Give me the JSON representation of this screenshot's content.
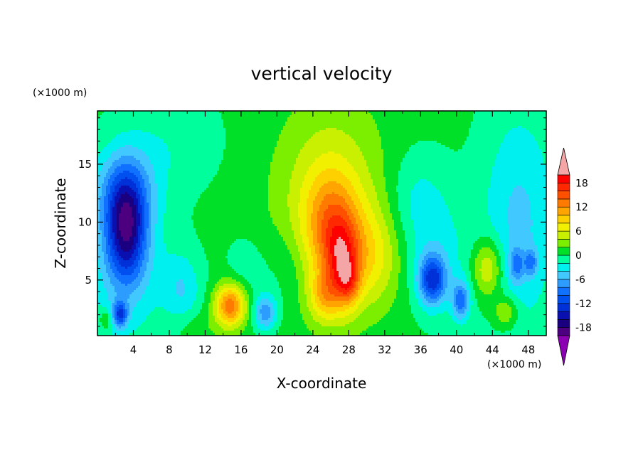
{
  "chart_data": {
    "type": "heatmap",
    "title": "vertical velocity",
    "xlabel": "X-coordinate",
    "ylabel": "Z-coordinate",
    "x_unit": "(×1000 m)",
    "y_unit": "(×1000 m)",
    "xlim": [
      0,
      50
    ],
    "ylim": [
      0.2,
      19.6
    ],
    "x_ticks": [
      4,
      8,
      12,
      16,
      20,
      24,
      28,
      32,
      36,
      40,
      44,
      48
    ],
    "y_ticks": [
      5,
      10,
      15
    ],
    "colorbar": {
      "levels": [
        -20,
        -18,
        -16,
        -14,
        -12,
        -10,
        -8,
        -6,
        -4,
        -2,
        0,
        2,
        4,
        6,
        8,
        10,
        12,
        14,
        16,
        18,
        20
      ],
      "labels": [
        -18,
        -12,
        -6,
        0,
        6,
        12,
        18
      ],
      "colors": [
        "#4c0080",
        "#1a0080",
        "#0a10b0",
        "#0030d8",
        "#0050f0",
        "#1070ff",
        "#2c9cff",
        "#40c8ff",
        "#00f0f0",
        "#00ff9c",
        "#00e028",
        "#7cee00",
        "#c8f000",
        "#f0f000",
        "#ffd000",
        "#ffa400",
        "#ff7a00",
        "#ff5000",
        "#ff2800",
        "#ff0000"
      ],
      "over_color": "#f4a6a6",
      "under_color": "#8c00b4"
    },
    "background_value": 0.5,
    "features": [
      {
        "x": 3.2,
        "z": 9.5,
        "sx": 1.6,
        "sz": 3.2,
        "v": -15
      },
      {
        "x": 3.0,
        "z": 13.0,
        "sx": 2.6,
        "sz": 2.5,
        "v": -5
      },
      {
        "x": 3.0,
        "z": 6.0,
        "sx": 3.5,
        "sz": 5.0,
        "v": -4
      },
      {
        "x": 2.5,
        "z": 2.0,
        "sx": 0.6,
        "sz": 0.8,
        "v": -10
      },
      {
        "x": 1.0,
        "z": 1.6,
        "sx": 0.5,
        "sz": 0.6,
        "v": 4
      },
      {
        "x": 9.5,
        "z": 4.2,
        "sx": 1.5,
        "sz": 2.2,
        "v": -4
      },
      {
        "x": 14.8,
        "z": 2.8,
        "sx": 1.2,
        "sz": 1.3,
        "v": 13
      },
      {
        "x": 18.7,
        "z": 2.2,
        "sx": 0.9,
        "sz": 1.1,
        "v": -8
      },
      {
        "x": 16.5,
        "z": 6.0,
        "sx": 1.5,
        "sz": 2.0,
        "v": -2
      },
      {
        "x": 26.0,
        "z": 11.5,
        "sx": 4.3,
        "sz": 6.0,
        "v": 6
      },
      {
        "x": 26.0,
        "z": 9.5,
        "sx": 2.0,
        "sz": 3.2,
        "v": 8
      },
      {
        "x": 27.3,
        "z": 6.2,
        "sx": 1.3,
        "sz": 2.6,
        "v": 10
      },
      {
        "x": 28.0,
        "z": 4.8,
        "sx": 0.8,
        "sz": 1.3,
        "v": 5
      },
      {
        "x": 25.2,
        "z": 3.5,
        "sx": 1.2,
        "sz": 1.5,
        "v": 6
      },
      {
        "x": 30.5,
        "z": 7.0,
        "sx": 2.2,
        "sz": 3.0,
        "v": 5
      },
      {
        "x": 35.5,
        "z": 12.0,
        "sx": 2.5,
        "sz": 3.0,
        "v": -3
      },
      {
        "x": 37.3,
        "z": 5.0,
        "sx": 1.1,
        "sz": 1.5,
        "v": -12
      },
      {
        "x": 38.0,
        "z": 7.0,
        "sx": 2.5,
        "sz": 3.5,
        "v": -3
      },
      {
        "x": 40.5,
        "z": 3.2,
        "sx": 0.7,
        "sz": 1.2,
        "v": -9
      },
      {
        "x": 43.5,
        "z": 6.0,
        "sx": 1.2,
        "sz": 1.8,
        "v": 7
      },
      {
        "x": 45.5,
        "z": 2.2,
        "sx": 1.0,
        "sz": 1.0,
        "v": 5
      },
      {
        "x": 47.0,
        "z": 10.0,
        "sx": 3.0,
        "sz": 7.0,
        "v": -5
      },
      {
        "x": 46.7,
        "z": 6.3,
        "sx": 0.6,
        "sz": 1.0,
        "v": -6
      },
      {
        "x": 48.3,
        "z": 6.5,
        "sx": 0.5,
        "sz": 0.8,
        "v": -6
      },
      {
        "x": 11.0,
        "z": 1.0,
        "sx": 2.0,
        "sz": 1.0,
        "v": 1.5
      },
      {
        "x": 21.0,
        "z": 6.0,
        "sx": 1.8,
        "sz": 2.5,
        "v": -2
      },
      {
        "x": 8.0,
        "z": 17.0,
        "sx": 4.0,
        "sz": 3.0,
        "v": -2
      }
    ]
  }
}
